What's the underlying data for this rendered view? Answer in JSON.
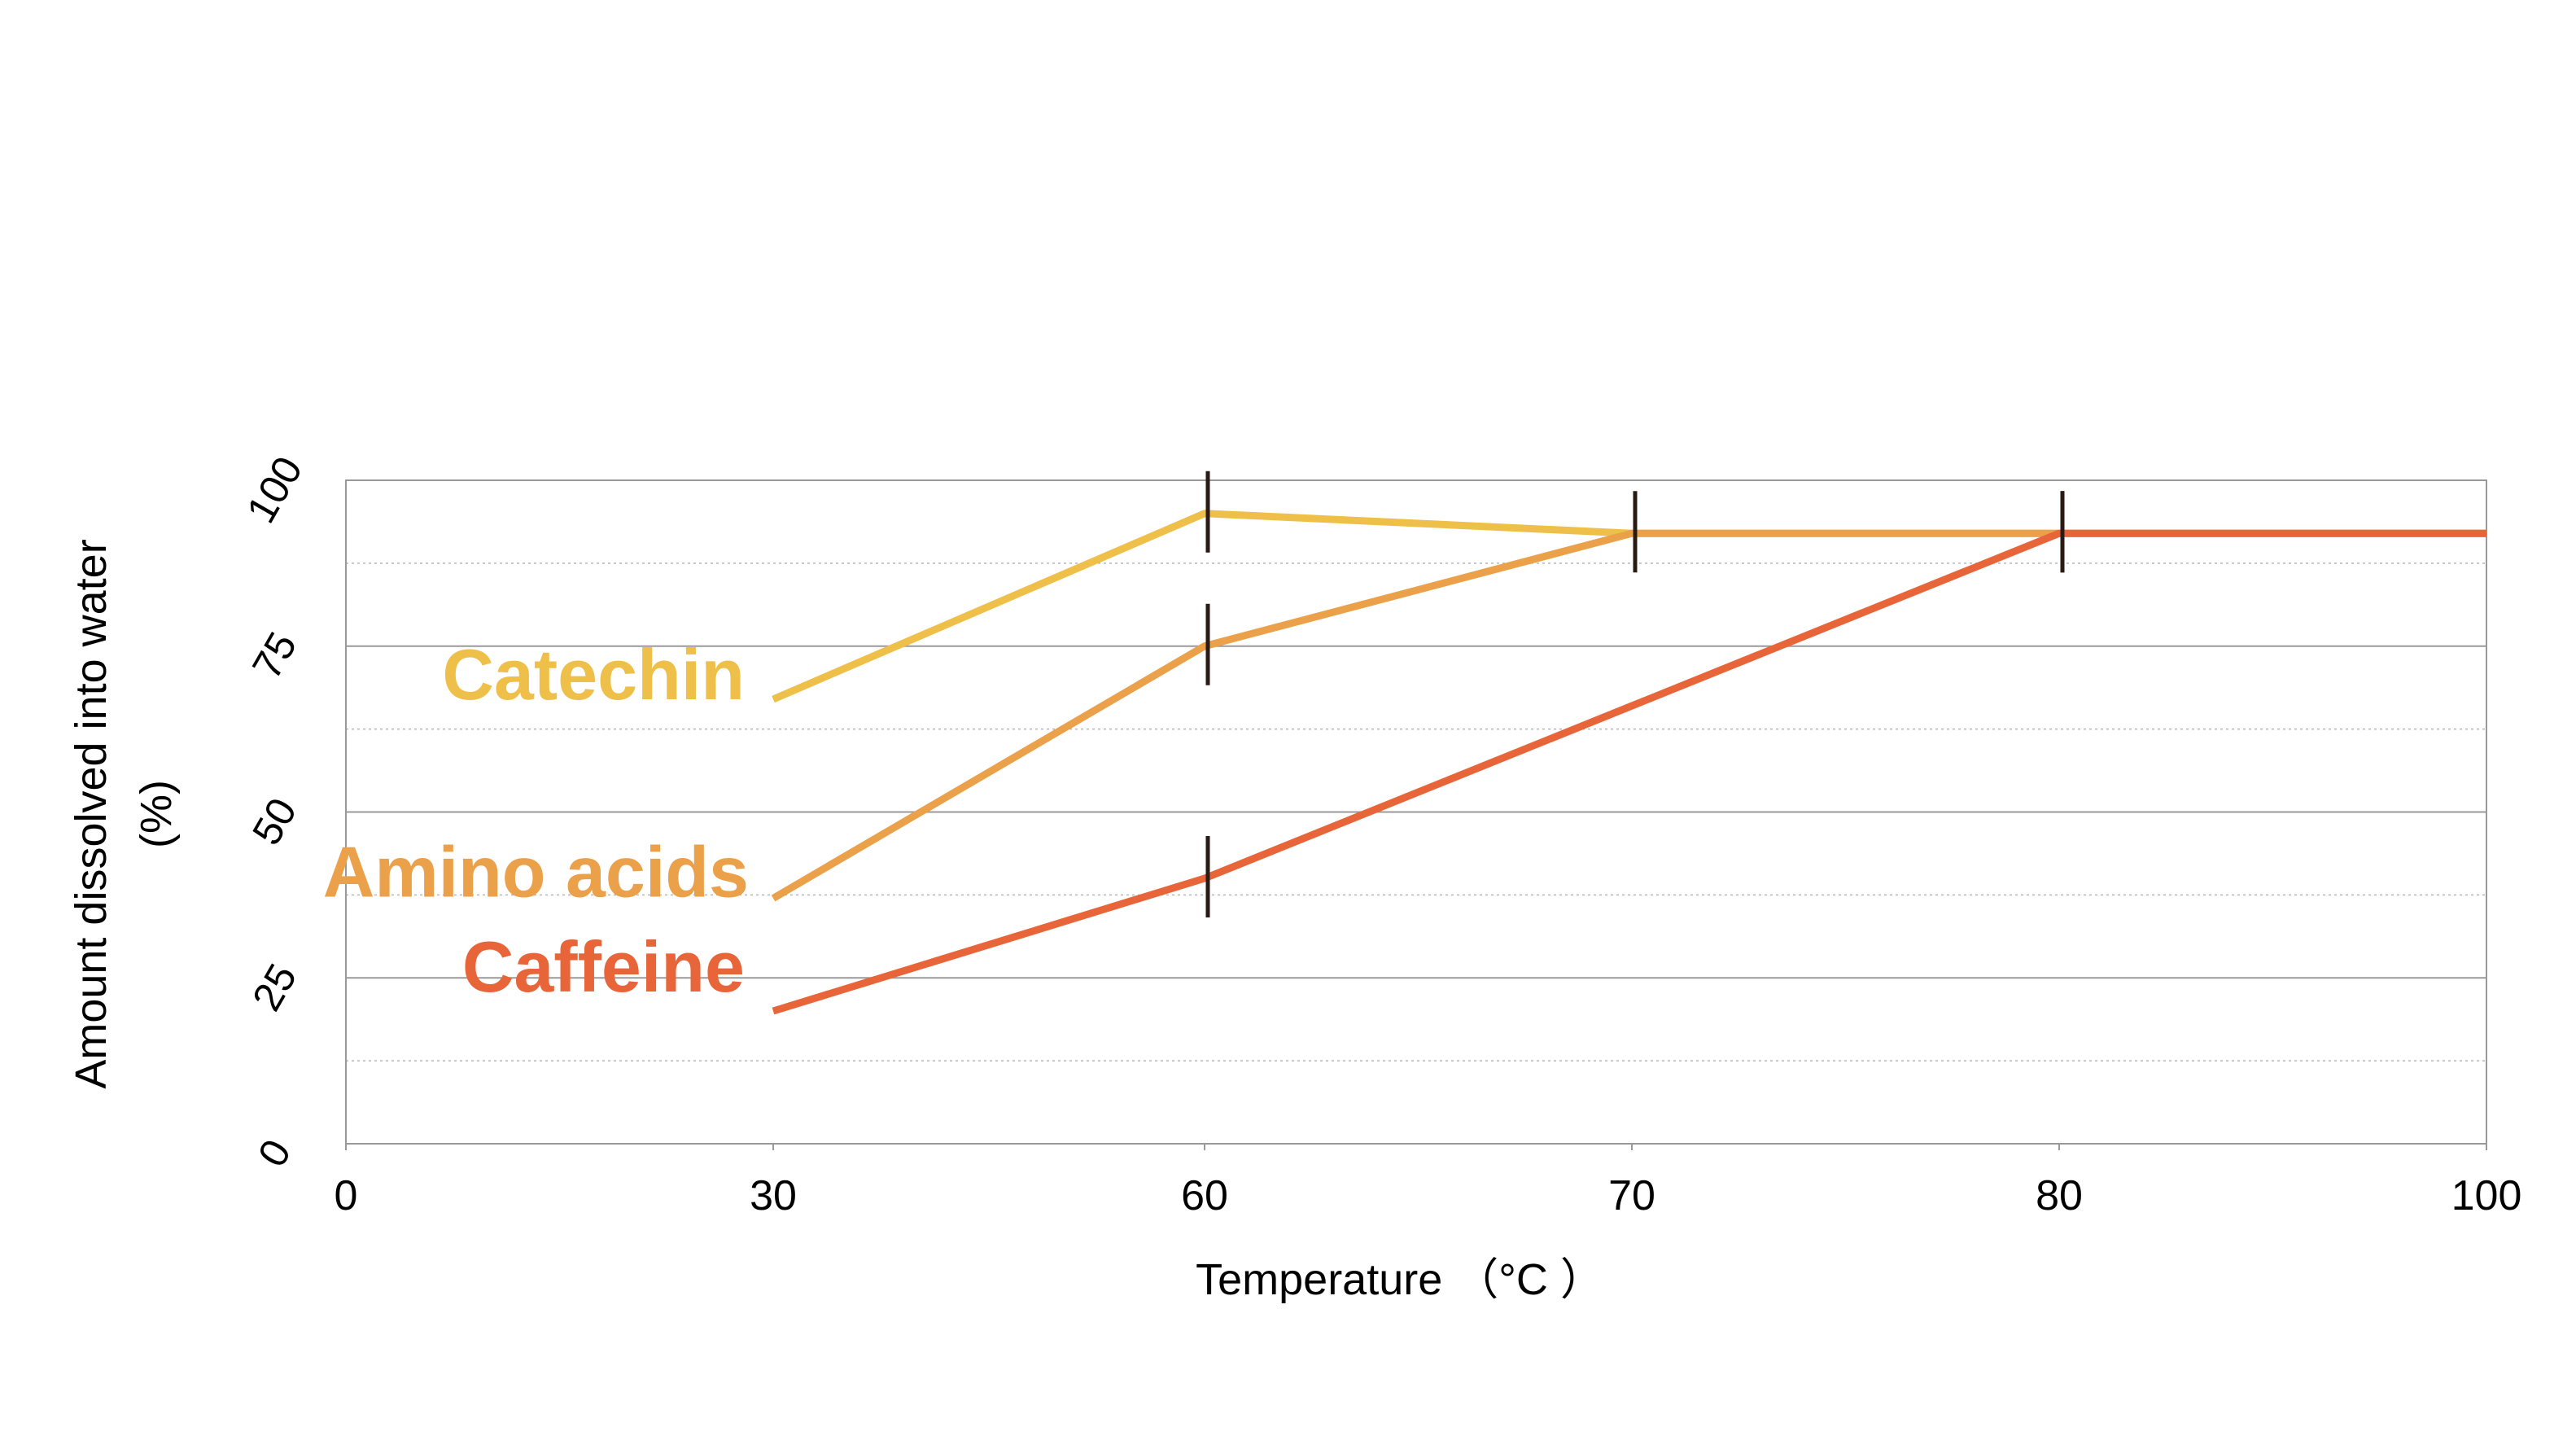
{
  "chart_data": {
    "type": "line",
    "title": "",
    "xlabel": "Temperature  （°C ）",
    "ylabel": "Amount dissolved into water",
    "ylabel_unit": "(%)",
    "x_ticks": [
      0,
      30,
      60,
      70,
      80,
      100
    ],
    "y_ticks": [
      0,
      25,
      50,
      75,
      100
    ],
    "ylim": [
      0,
      100
    ],
    "grid": true,
    "series": [
      {
        "name": "Catechin",
        "color": "#EEC04A",
        "points": [
          [
            30,
            67
          ],
          [
            60,
            95
          ],
          [
            70,
            92
          ],
          [
            80,
            92
          ],
          [
            100,
            92
          ]
        ],
        "markers_at": [
          60,
          70,
          80
        ]
      },
      {
        "name": "Amino acids",
        "color": "#EBA04A",
        "points": [
          [
            30,
            37
          ],
          [
            60,
            75
          ],
          [
            70,
            92
          ],
          [
            80,
            92
          ],
          [
            100,
            92
          ]
        ],
        "markers_at": [
          60
        ]
      },
      {
        "name": "Caffeine",
        "color": "#E8653A",
        "points": [
          [
            30,
            20
          ],
          [
            60,
            40
          ],
          [
            70,
            66
          ],
          [
            80,
            92
          ],
          [
            100,
            92
          ]
        ],
        "markers_at": [
          60,
          80
        ]
      }
    ]
  }
}
